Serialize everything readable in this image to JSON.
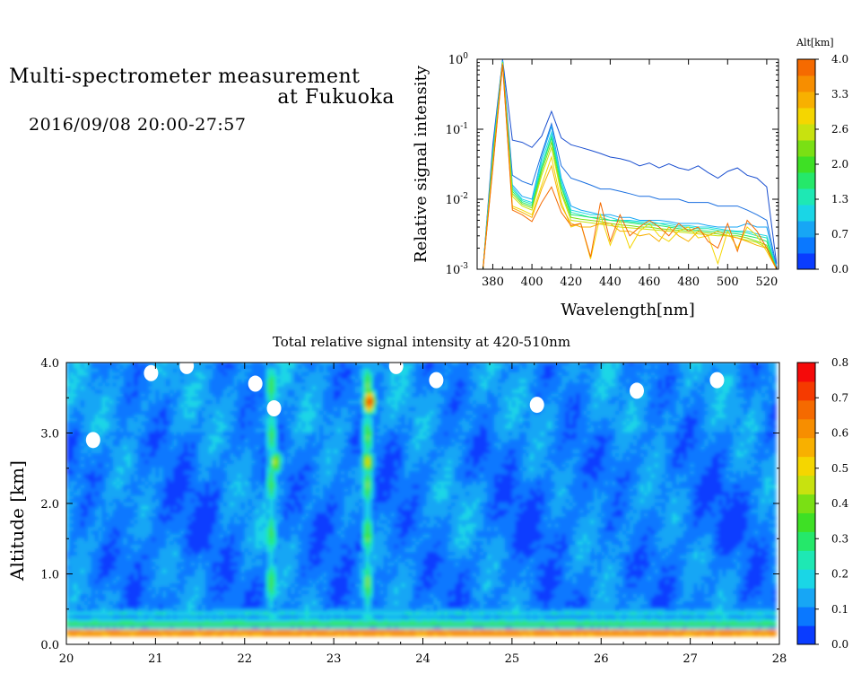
{
  "header": {
    "title_line1": "Multi-spectrometer measurement",
    "title_line2": "at Fukuoka",
    "timestamp": "2016/09/08 20:00-27:57"
  },
  "chart_data": [
    {
      "type": "line",
      "title": "",
      "xlabel": "Wavelength[nm]",
      "ylabel": "Relative signal intensity",
      "xlim": [
        372,
        526
      ],
      "ylim": [
        0.001,
        1
      ],
      "yscale": "log",
      "xticks": [
        380,
        400,
        420,
        440,
        460,
        480,
        500,
        520
      ],
      "yticks": [
        {
          "value": 0.001,
          "base": "10",
          "exp": "-3"
        },
        {
          "value": 0.01,
          "base": "10",
          "exp": "-2"
        },
        {
          "value": 0.1,
          "base": "10",
          "exp": "-1"
        },
        {
          "value": 1,
          "base": "10",
          "exp": "0"
        }
      ],
      "x": [
        375,
        380,
        385,
        390,
        395,
        400,
        405,
        410,
        415,
        420,
        425,
        430,
        435,
        440,
        445,
        450,
        455,
        460,
        465,
        470,
        475,
        480,
        485,
        490,
        495,
        500,
        505,
        510,
        515,
        520,
        525
      ],
      "colorbar": {
        "title": "Alt[km]",
        "ticks": [
          "0.0",
          "0.7",
          "1.3",
          "2.0",
          "2.6",
          "3.3",
          "4.0"
        ],
        "colors": [
          "#0a3cff",
          "#0a78ff",
          "#17a6f5",
          "#1ad6e6",
          "#1ee8b4",
          "#25e86a",
          "#3ee025",
          "#7ae014",
          "#c8e20f",
          "#f5d600",
          "#f8b000",
          "#f78e00",
          "#f56a00"
        ]
      },
      "series": [
        {
          "color": "#1a4fd0",
          "values": [
            0.001,
            0.06,
            1.0,
            0.07,
            0.065,
            0.055,
            0.08,
            0.18,
            0.075,
            0.06,
            0.055,
            0.05,
            0.045,
            0.04,
            0.038,
            0.035,
            0.03,
            0.033,
            0.028,
            0.032,
            0.028,
            0.026,
            0.03,
            0.024,
            0.02,
            0.025,
            0.028,
            0.022,
            0.02,
            0.015,
            0.0012
          ]
        },
        {
          "color": "#1a6fe0",
          "values": [
            0.001,
            0.05,
            0.98,
            0.022,
            0.018,
            0.016,
            0.045,
            0.12,
            0.03,
            0.02,
            0.018,
            0.016,
            0.014,
            0.014,
            0.013,
            0.012,
            0.011,
            0.011,
            0.01,
            0.01,
            0.01,
            0.009,
            0.009,
            0.009,
            0.008,
            0.008,
            0.008,
            0.007,
            0.006,
            0.005,
            0.0011
          ]
        },
        {
          "color": "#17a6f5",
          "values": [
            0.001,
            0.045,
            0.95,
            0.016,
            0.011,
            0.01,
            0.04,
            0.11,
            0.02,
            0.008,
            0.007,
            0.0065,
            0.006,
            0.006,
            0.0055,
            0.0055,
            0.005,
            0.005,
            0.005,
            0.0048,
            0.0045,
            0.0045,
            0.0045,
            0.0042,
            0.004,
            0.004,
            0.004,
            0.0045,
            0.004,
            0.004,
            0.001
          ]
        },
        {
          "color": "#1ad6e6",
          "values": [
            0.001,
            0.045,
            0.93,
            0.015,
            0.01,
            0.009,
            0.035,
            0.09,
            0.018,
            0.007,
            0.0065,
            0.006,
            0.006,
            0.0055,
            0.005,
            0.005,
            0.0048,
            0.0048,
            0.0045,
            0.0045,
            0.0042,
            0.0042,
            0.004,
            0.004,
            0.0038,
            0.0036,
            0.0035,
            0.0035,
            0.0032,
            0.003,
            0.001
          ]
        },
        {
          "color": "#1ee8b4",
          "values": [
            0.001,
            0.04,
            0.92,
            0.014,
            0.0095,
            0.0085,
            0.03,
            0.08,
            0.016,
            0.0065,
            0.006,
            0.0055,
            0.0055,
            0.005,
            0.005,
            0.0048,
            0.0046,
            0.0045,
            0.0045,
            0.0042,
            0.004,
            0.004,
            0.0038,
            0.0038,
            0.0036,
            0.0035,
            0.0034,
            0.0033,
            0.003,
            0.0028,
            0.001
          ]
        },
        {
          "color": "#25e86a",
          "values": [
            0.001,
            0.04,
            0.91,
            0.013,
            0.009,
            0.008,
            0.028,
            0.075,
            0.015,
            0.006,
            0.0058,
            0.0055,
            0.0052,
            0.005,
            0.0048,
            0.0046,
            0.0044,
            0.0043,
            0.0042,
            0.004,
            0.0038,
            0.0037,
            0.0036,
            0.0035,
            0.0034,
            0.0033,
            0.0032,
            0.003,
            0.0028,
            0.0025,
            0.001
          ]
        },
        {
          "color": "#7ae014",
          "values": [
            0.001,
            0.035,
            0.9,
            0.012,
            0.0085,
            0.0075,
            0.025,
            0.065,
            0.013,
            0.0055,
            0.0052,
            0.005,
            0.0048,
            0.0045,
            0.0043,
            0.0042,
            0.004,
            0.004,
            0.0038,
            0.0037,
            0.0036,
            0.0035,
            0.0034,
            0.0033,
            0.0032,
            0.003,
            0.003,
            0.0028,
            0.0025,
            0.0022,
            0.001
          ]
        },
        {
          "color": "#c8e20f",
          "values": [
            0.001,
            0.035,
            0.88,
            0.011,
            0.008,
            0.007,
            0.022,
            0.055,
            0.012,
            0.005,
            0.0048,
            0.0046,
            0.0044,
            0.0042,
            0.004,
            0.0039,
            0.0038,
            0.0037,
            0.0036,
            0.0035,
            0.0034,
            0.0033,
            0.0032,
            0.0031,
            0.003,
            0.003,
            0.0028,
            0.0026,
            0.0024,
            0.002,
            0.001
          ]
        },
        {
          "color": "#f5d600",
          "values": [
            0.001,
            0.03,
            0.86,
            0.008,
            0.007,
            0.006,
            0.016,
            0.04,
            0.009,
            0.004,
            0.0045,
            0.0014,
            0.006,
            0.0022,
            0.005,
            0.002,
            0.0035,
            0.0045,
            0.003,
            0.0025,
            0.0035,
            0.004,
            0.0028,
            0.003,
            0.0012,
            0.0035,
            0.002,
            0.004,
            0.003,
            0.0018,
            0.001
          ]
        },
        {
          "color": "#f8b000",
          "values": [
            0.001,
            0.03,
            0.85,
            0.0075,
            0.0065,
            0.0055,
            0.014,
            0.03,
            0.008,
            0.0045,
            0.004,
            0.004,
            0.0045,
            0.0045,
            0.0035,
            0.0035,
            0.003,
            0.0032,
            0.0025,
            0.004,
            0.003,
            0.0025,
            0.0035,
            0.003,
            0.0035,
            0.003,
            0.0028,
            0.0025,
            0.0022,
            0.002,
            0.001
          ]
        },
        {
          "color": "#f56a00",
          "values": [
            0.001,
            0.028,
            0.84,
            0.007,
            0.006,
            0.0048,
            0.009,
            0.015,
            0.0065,
            0.0042,
            0.0045,
            0.0015,
            0.009,
            0.0025,
            0.006,
            0.003,
            0.004,
            0.005,
            0.004,
            0.003,
            0.0045,
            0.0035,
            0.004,
            0.0025,
            0.002,
            0.0045,
            0.0018,
            0.005,
            0.0035,
            0.002,
            0.001
          ]
        }
      ]
    },
    {
      "type": "heatmap",
      "title": "Total relative signal intensity at 420-510nm",
      "xlabel": "",
      "ylabel": "Altitude [km]",
      "xlim": [
        20,
        28
      ],
      "ylim": [
        0,
        4
      ],
      "data_x_end": 27.95,
      "xticks": [
        "20",
        "21",
        "22",
        "23",
        "24",
        "25",
        "26",
        "27",
        "28"
      ],
      "yticks": [
        "0.0",
        "1.0",
        "2.0",
        "3.0",
        "4.0"
      ],
      "colorbar": {
        "ticks": [
          "0.0",
          "0.1",
          "0.2",
          "0.3",
          "0.4",
          "0.5",
          "0.6",
          "0.7",
          "0.8"
        ],
        "colors": [
          "#0a3cff",
          "#0a78ff",
          "#17a6f5",
          "#1ad6e6",
          "#1ee8b4",
          "#25e86a",
          "#3ee025",
          "#7ae014",
          "#c8e20f",
          "#f5d600",
          "#f8b000",
          "#f78e00",
          "#f56a00",
          "#f53a00",
          "#f50a0a"
        ]
      },
      "features": {
        "bands": [
          {
            "alt": 0.17,
            "value": 0.7
          },
          {
            "alt": 0.3,
            "value": 0.35
          },
          {
            "alt": 0.45,
            "value": 0.2
          }
        ],
        "plumes": [
          {
            "x": 22.3,
            "from": 0.35,
            "to": 3.9,
            "value": 0.35
          },
          {
            "x": 23.38,
            "from": 0.35,
            "to": 3.9,
            "value": 0.38
          }
        ],
        "hotspots": [
          {
            "x": 23.4,
            "alt": 3.45,
            "value": 0.75
          },
          {
            "x": 22.35,
            "alt": 2.6,
            "value": 0.45
          },
          {
            "x": 23.38,
            "alt": 2.6,
            "value": 0.5
          }
        ],
        "missing": [
          {
            "x": 20.95,
            "alt": 3.85
          },
          {
            "x": 22.12,
            "alt": 3.7
          },
          {
            "x": 22.33,
            "alt": 3.35
          },
          {
            "x": 20.3,
            "alt": 2.9
          },
          {
            "x": 24.15,
            "alt": 3.75
          },
          {
            "x": 25.28,
            "alt": 3.4
          },
          {
            "x": 27.3,
            "alt": 3.75
          },
          {
            "x": 26.4,
            "alt": 3.6
          },
          {
            "x": 23.7,
            "alt": 3.95
          },
          {
            "x": 21.35,
            "alt": 3.95
          }
        ]
      }
    }
  ]
}
